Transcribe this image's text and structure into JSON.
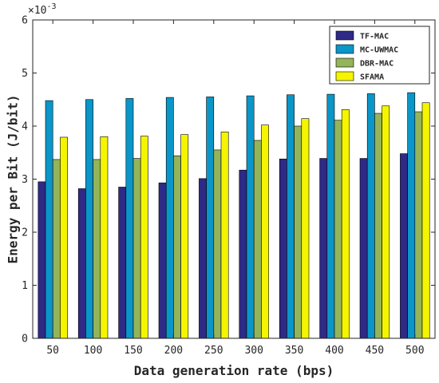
{
  "chart_data": {
    "type": "bar",
    "title": "",
    "xlabel": "Data generation rate (bps)",
    "ylabel": "Energy per Bit (J/bit)",
    "y_multiplier_label": "×10^{-3}",
    "y_multiplier_base": "×10",
    "y_multiplier_exp": "-3",
    "categories": [
      "50",
      "100",
      "150",
      "200",
      "250",
      "300",
      "350",
      "400",
      "450",
      "500"
    ],
    "ylim": [
      0,
      6
    ],
    "y_ticks": [
      "0",
      "1",
      "2",
      "3",
      "4",
      "5",
      "6"
    ],
    "grid": false,
    "legend_position": "top-right",
    "series": [
      {
        "name": "TF-MAC",
        "color": "#2e2a86",
        "values": [
          2.95,
          2.82,
          2.85,
          2.93,
          3.01,
          3.17,
          3.38,
          3.39,
          3.39,
          3.48
        ]
      },
      {
        "name": "MC-UWMAC",
        "color": "#0a96c8",
        "values": [
          4.48,
          4.5,
          4.52,
          4.54,
          4.55,
          4.57,
          4.59,
          4.6,
          4.61,
          4.63
        ]
      },
      {
        "name": "DBR-MAC",
        "color": "#94b45a",
        "values": [
          3.37,
          3.37,
          3.39,
          3.44,
          3.55,
          3.73,
          4.0,
          4.11,
          4.24,
          4.27
        ]
      },
      {
        "name": "SFAMA",
        "color": "#f5f500",
        "values": [
          3.79,
          3.8,
          3.81,
          3.84,
          3.89,
          4.02,
          4.14,
          4.31,
          4.38,
          4.44
        ]
      }
    ]
  }
}
